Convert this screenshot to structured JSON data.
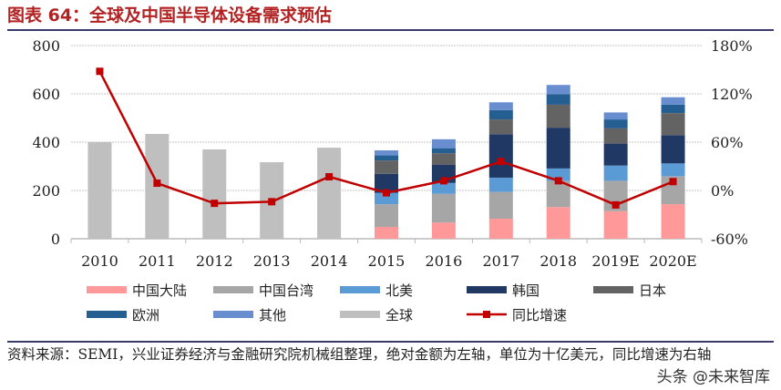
{
  "title": "图表 64：全球及中国半导体设备需求预估",
  "source": "资料来源：SEMI，兴业证券经济与金融研究院机械组整理，绝对金额为左轴，单位为十亿美元，同比增速为右轴",
  "watermark": "头条 @未来智库",
  "chart_data": {
    "type": "bar",
    "categories": [
      "2010",
      "2011",
      "2012",
      "2013",
      "2014",
      "2015",
      "2016",
      "2017",
      "2018",
      "2019E",
      "2020E"
    ],
    "ylim": [
      0,
      800
    ],
    "yticks": [
      "0",
      "200",
      "400",
      "600",
      "800"
    ],
    "y2lim": [
      -60,
      180
    ],
    "y2ticks": [
      "-60%",
      "0%",
      "60%",
      "120%",
      "180%"
    ],
    "grid": true,
    "legend": "bottom",
    "stack_series": [
      {
        "name": "中国大陆",
        "color": "#ff9999",
        "values": [
          null,
          null,
          null,
          null,
          null,
          49,
          67,
          83,
          131,
          114,
          143
        ]
      },
      {
        "name": "中国台湾",
        "color": "#a6a6a6",
        "values": [
          null,
          null,
          null,
          null,
          null,
          94,
          119,
          111,
          109,
          126,
          116
        ]
      },
      {
        "name": "北美",
        "color": "#5b9bd5",
        "values": [
          null,
          null,
          null,
          null,
          null,
          47,
          45,
          59,
          51,
          63,
          53
        ]
      },
      {
        "name": "韩国",
        "color": "#203864",
        "values": [
          null,
          null,
          null,
          null,
          null,
          79,
          76,
          180,
          169,
          91,
          117
        ]
      },
      {
        "name": "日本",
        "color": "#636363",
        "values": [
          null,
          null,
          null,
          null,
          null,
          55,
          47,
          61,
          95,
          63,
          91
        ]
      },
      {
        "name": "欧洲",
        "color": "#255e91",
        "values": [
          null,
          null,
          null,
          null,
          null,
          21,
          21,
          39,
          44,
          37,
          35
        ]
      },
      {
        "name": "其他",
        "color": "#698ed0",
        "values": [
          null,
          null,
          null,
          null,
          null,
          21,
          37,
          32,
          38,
          29,
          31
        ]
      }
    ],
    "global_series": {
      "name": "全球",
      "color": "#bfbfbf",
      "values": [
        400,
        434,
        370,
        317,
        377,
        null,
        null,
        null,
        null,
        null,
        null
      ]
    },
    "line_series": {
      "name": "同比增速",
      "color": "#c00000",
      "axis": "right",
      "values": [
        148,
        9,
        -16,
        -14,
        17,
        -3,
        12,
        36,
        12,
        -18,
        11
      ]
    }
  }
}
